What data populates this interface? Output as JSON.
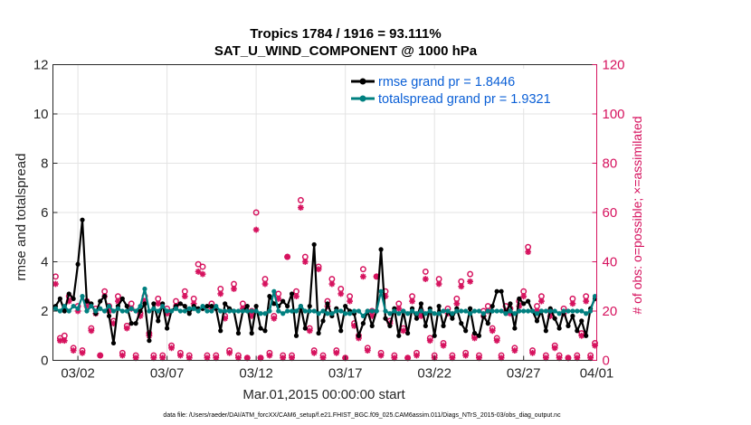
{
  "chart_data": {
    "type": "line",
    "title": [
      "Tropics 1784 / 1916 = 93.111%",
      "SAT_U_WIND_COMPONENT @ 1000 hPa"
    ],
    "xlabel": "Mar.01,2015 00:00:00 start",
    "ylabel": "rmse and totalspread",
    "ylabel_right": "# of obs: o=possible; ×=assimilated",
    "footer": "data file: /Users/raeder/DAI/ATM_forcXX/CAM6_setup/f.e21.FHIST_BGC.f09_025.CAM6assim.011/Diags_NTrS_2015-03/obs_diag_output.nc",
    "xlim": [
      0.6,
      31.1
    ],
    "ylim": [
      0,
      12
    ],
    "ylim_right": [
      0,
      120
    ],
    "xticks": [
      {
        "x": 2,
        "label": "03/02"
      },
      {
        "x": 7,
        "label": "03/07"
      },
      {
        "x": 12,
        "label": "03/12"
      },
      {
        "x": 17,
        "label": "03/17"
      },
      {
        "x": 22,
        "label": "03/22"
      },
      {
        "x": 27,
        "label": "03/27"
      },
      {
        "x": 32,
        "label": "04/01"
      }
    ],
    "yticks": [
      0,
      2,
      4,
      6,
      8,
      10,
      12
    ],
    "yticks_right": [
      0,
      20,
      40,
      60,
      80,
      100,
      120
    ],
    "grid": true,
    "legend_position": "top-right",
    "colors": {
      "rmse": "#000000",
      "spread": "#008080",
      "obs": "#d6125e",
      "legend_text": "#0a5fd6"
    },
    "series": [
      {
        "name": "rmse grand pr = 1.8446",
        "color": "#000000",
        "x": [
          0.75,
          1.0,
          1.25,
          1.5,
          1.75,
          2.0,
          2.25,
          2.5,
          2.75,
          3.0,
          3.25,
          3.5,
          3.75,
          4.0,
          4.25,
          4.5,
          4.75,
          5.0,
          5.25,
          5.5,
          5.75,
          6.0,
          6.25,
          6.5,
          6.75,
          7.0,
          7.25,
          7.5,
          7.75,
          8.0,
          8.25,
          8.5,
          8.75,
          9.0,
          9.25,
          9.5,
          9.75,
          10.0,
          10.25,
          10.5,
          10.75,
          11.0,
          11.25,
          11.5,
          11.75,
          12.0,
          12.25,
          12.5,
          12.75,
          13.0,
          13.25,
          13.5,
          13.75,
          14.0,
          14.25,
          14.5,
          14.75,
          15.0,
          15.25,
          15.5,
          15.75,
          16.0,
          16.25,
          16.5,
          16.75,
          17.0,
          17.25,
          17.5,
          17.75,
          18.0,
          18.25,
          18.5,
          18.75,
          19.0,
          19.25,
          19.5,
          19.75,
          20.0,
          20.25,
          20.5,
          20.75,
          21.0,
          21.25,
          21.5,
          21.75,
          22.0,
          22.25,
          22.5,
          22.75,
          23.0,
          23.25,
          23.5,
          23.75,
          24.0,
          24.25,
          24.5,
          24.75,
          25.0,
          25.25,
          25.5,
          25.75,
          26.0,
          26.25,
          26.5,
          26.75,
          27.0,
          27.25,
          27.5,
          27.75,
          28.0,
          28.25,
          28.5,
          28.75,
          29.0,
          29.25,
          29.5,
          29.75,
          30.0,
          30.25,
          30.5,
          30.75,
          31.0
        ],
        "values": [
          2.2,
          2.5,
          2.0,
          2.7,
          2.5,
          3.9,
          5.7,
          2.4,
          2.3,
          1.9,
          2.4,
          2.6,
          1.8,
          0.7,
          2.2,
          2.5,
          2.2,
          1.5,
          1.5,
          2.0,
          2.3,
          0.8,
          2.3,
          1.6,
          2.3,
          1.3,
          2.0,
          2.2,
          2.3,
          2.2,
          1.9,
          2.2,
          2.1,
          2.1,
          2.2,
          2.2,
          2.1,
          1.2,
          2.3,
          2.1,
          2.0,
          1.1,
          2.0,
          2.2,
          1.1,
          2.2,
          1.3,
          1.2,
          2.6,
          2.3,
          2.2,
          2.4,
          2.2,
          2.7,
          1.0,
          2.2,
          1.3,
          2.2,
          4.7,
          1.1,
          1.6,
          2.3,
          1.8,
          2.1,
          1.2,
          2.2,
          2.0,
          1.9,
          1.0,
          1.5,
          2.0,
          1.4,
          2.0,
          4.5,
          1.7,
          1.4,
          2.1,
          1.0,
          2.0,
          1.1,
          2.1,
          1.7,
          2.3,
          1.4,
          2.1,
          1.0,
          2.2,
          1.4,
          2.0,
          1.7,
          2.1,
          1.5,
          1.2,
          2.1,
          1.1,
          1.0,
          1.8,
          1.5,
          2.2,
          2.8,
          2.8,
          1.9,
          2.3,
          1.3,
          2.5,
          2.3,
          2.4,
          2.0,
          1.6,
          2.0,
          1.2,
          2.1,
          1.7,
          1.3,
          2.0,
          1.4,
          1.8,
          1.2,
          1.6,
          1.0,
          2.1,
          2.5
        ],
        "marker": "filled-circle"
      },
      {
        "name": "totalspread grand pr = 1.9321",
        "color": "#008080",
        "x": [
          0.75,
          1.0,
          1.25,
          1.5,
          1.75,
          2.0,
          2.25,
          2.5,
          2.75,
          3.0,
          3.25,
          3.5,
          3.75,
          4.0,
          4.25,
          4.5,
          4.75,
          5.0,
          5.25,
          5.5,
          5.75,
          6.0,
          6.25,
          6.5,
          6.75,
          7.0,
          7.25,
          7.5,
          7.75,
          8.0,
          8.25,
          8.5,
          8.75,
          9.0,
          9.25,
          9.5,
          9.75,
          10.0,
          10.25,
          10.5,
          10.75,
          11.0,
          11.25,
          11.5,
          11.75,
          12.0,
          12.25,
          12.5,
          12.75,
          13.0,
          13.25,
          13.5,
          13.75,
          14.0,
          14.25,
          14.5,
          14.75,
          15.0,
          15.25,
          15.5,
          15.75,
          16.0,
          16.25,
          16.5,
          16.75,
          17.0,
          17.25,
          17.5,
          17.75,
          18.0,
          18.25,
          18.5,
          18.75,
          19.0,
          19.25,
          19.5,
          19.75,
          20.0,
          20.25,
          20.5,
          20.75,
          21.0,
          21.25,
          21.5,
          21.75,
          22.0,
          22.25,
          22.5,
          22.75,
          23.0,
          23.25,
          23.5,
          23.75,
          24.0,
          24.25,
          24.5,
          24.75,
          25.0,
          25.25,
          25.5,
          25.75,
          26.0,
          26.25,
          26.5,
          26.75,
          27.0,
          27.25,
          27.5,
          27.75,
          28.0,
          28.25,
          28.5,
          28.75,
          29.0,
          29.25,
          29.5,
          29.75,
          30.0,
          30.25,
          30.5,
          30.75,
          31.0
        ],
        "values": [
          2.1,
          2.0,
          2.2,
          2.0,
          2.2,
          2.1,
          2.6,
          2.0,
          2.2,
          2.0,
          2.1,
          2.0,
          2.2,
          2.0,
          2.1,
          2.0,
          2.0,
          2.1,
          2.0,
          2.2,
          2.9,
          2.0,
          2.1,
          2.0,
          2.2,
          2.0,
          2.0,
          2.1,
          2.0,
          2.0,
          2.1,
          2.1,
          2.0,
          2.2,
          2.0,
          2.0,
          2.2,
          2.0,
          2.0,
          2.0,
          2.0,
          2.0,
          2.0,
          2.0,
          2.0,
          2.0,
          1.9,
          1.9,
          2.0,
          2.8,
          2.0,
          1.9,
          2.0,
          2.0,
          2.0,
          2.2,
          2.0,
          2.0,
          2.0,
          1.9,
          2.0,
          1.9,
          1.9,
          2.0,
          2.0,
          1.9,
          1.9,
          2.0,
          2.0,
          1.8,
          2.0,
          2.0,
          2.0,
          2.8,
          2.0,
          1.9,
          2.0,
          1.9,
          2.0,
          1.9,
          2.0,
          1.9,
          2.0,
          1.9,
          2.0,
          1.9,
          1.9,
          2.0,
          2.0,
          1.9,
          2.0,
          2.0,
          2.0,
          1.9,
          2.0,
          2.0,
          1.9,
          2.0,
          2.0,
          2.0,
          2.0,
          1.9,
          2.0,
          1.9,
          2.0,
          2.0,
          2.0,
          2.0,
          1.9,
          2.0,
          2.0,
          2.0,
          2.0,
          1.9,
          2.0,
          2.0,
          2.0,
          2.0,
          2.0,
          1.9,
          2.0,
          2.6
        ],
        "marker": "filled-circle"
      },
      {
        "name": "obs possible",
        "color": "#d6125e",
        "axis": "right",
        "marker": "open-circle",
        "x": [
          0.75,
          1.0,
          1.25,
          1.5,
          1.75,
          2.0,
          2.25,
          2.5,
          2.75,
          3.0,
          3.25,
          3.5,
          3.75,
          4.0,
          4.25,
          4.5,
          4.75,
          5.0,
          5.25,
          5.5,
          5.75,
          6.0,
          6.25,
          6.5,
          6.75,
          7.0,
          7.25,
          7.5,
          7.75,
          8.0,
          8.25,
          8.5,
          8.75,
          9.0,
          9.25,
          9.5,
          9.75,
          10.0,
          10.25,
          10.5,
          10.75,
          11.0,
          11.25,
          11.5,
          11.75,
          12.0,
          12.25,
          12.5,
          12.75,
          13.0,
          13.25,
          13.5,
          13.75,
          14.0,
          14.25,
          14.5,
          14.75,
          15.0,
          15.25,
          15.5,
          15.75,
          16.0,
          16.25,
          16.5,
          16.75,
          17.0,
          17.25,
          17.5,
          17.75,
          18.0,
          18.25,
          18.5,
          18.75,
          19.0,
          19.25,
          19.5,
          19.75,
          20.0,
          20.25,
          20.5,
          20.75,
          21.0,
          21.25,
          21.5,
          21.75,
          22.0,
          22.25,
          22.5,
          22.75,
          23.0,
          23.25,
          23.5,
          23.75,
          24.0,
          24.25,
          24.5,
          24.75,
          25.0,
          25.25,
          25.5,
          25.75,
          26.0,
          26.25,
          26.5,
          26.75,
          27.0,
          27.25,
          27.5,
          27.75,
          28.0,
          28.25,
          28.5,
          28.75,
          29.0,
          29.25,
          29.5,
          29.75,
          30.0,
          30.25,
          30.5,
          30.75,
          31.0
        ],
        "values": [
          34,
          9,
          10,
          26,
          5,
          22,
          4,
          24,
          13,
          21,
          2,
          28,
          22,
          16,
          26,
          3,
          14,
          23,
          2,
          19,
          26,
          11,
          2,
          25,
          2,
          21,
          6,
          24,
          3,
          28,
          2,
          25,
          39,
          38,
          2,
          23,
          2,
          29,
          18,
          4,
          31,
          2,
          23,
          1,
          20,
          60,
          1,
          33,
          3,
          18,
          27,
          2,
          42,
          2,
          28,
          65,
          42,
          13,
          4,
          38,
          2,
          24,
          33,
          4,
          29,
          1,
          26,
          15,
          10,
          37,
          5,
          20,
          34,
          3,
          28,
          16,
          2,
          23,
          13,
          1,
          26,
          3,
          20,
          36,
          9,
          2,
          33,
          7,
          21,
          2,
          25,
          32,
          3,
          35,
          10,
          2,
          20,
          22,
          13,
          9,
          2,
          22,
          21,
          5,
          24,
          28,
          46,
          4,
          22,
          26,
          2,
          20,
          6,
          2,
          21,
          1,
          25,
          2,
          11,
          26,
          2,
          7
        ]
      },
      {
        "name": "obs assimilated",
        "color": "#d6125e",
        "axis": "right",
        "marker": "star",
        "x": [
          0.75,
          1.0,
          1.25,
          1.5,
          1.75,
          2.0,
          2.25,
          2.5,
          2.75,
          3.0,
          3.25,
          3.5,
          3.75,
          4.0,
          4.25,
          4.5,
          4.75,
          5.0,
          5.25,
          5.5,
          5.75,
          6.0,
          6.25,
          6.5,
          6.75,
          7.0,
          7.25,
          7.5,
          7.75,
          8.0,
          8.25,
          8.5,
          8.75,
          9.0,
          9.25,
          9.5,
          9.75,
          10.0,
          10.25,
          10.5,
          10.75,
          11.0,
          11.25,
          11.5,
          11.75,
          12.0,
          12.25,
          12.5,
          12.75,
          13.0,
          13.25,
          13.5,
          13.75,
          14.0,
          14.25,
          14.5,
          14.75,
          15.0,
          15.25,
          15.5,
          15.75,
          16.0,
          16.25,
          16.5,
          16.75,
          17.0,
          17.25,
          17.5,
          17.75,
          18.0,
          18.25,
          18.5,
          18.75,
          19.0,
          19.25,
          19.5,
          19.75,
          20.0,
          20.25,
          20.5,
          20.75,
          21.0,
          21.25,
          21.5,
          21.75,
          22.0,
          22.25,
          22.5,
          22.75,
          23.0,
          23.25,
          23.5,
          23.75,
          24.0,
          24.25,
          24.5,
          24.75,
          25.0,
          25.25,
          25.5,
          25.75,
          26.0,
          26.25,
          26.5,
          26.75,
          27.0,
          27.25,
          27.5,
          27.75,
          28.0,
          28.25,
          28.5,
          28.75,
          29.0,
          29.25,
          29.5,
          29.75,
          30.0,
          30.25,
          30.5,
          30.75,
          31.0
        ],
        "values": [
          31,
          8,
          8,
          24,
          4,
          20,
          3,
          22,
          12,
          19,
          2,
          26,
          20,
          15,
          24,
          2,
          13,
          21,
          1,
          18,
          24,
          10,
          1,
          23,
          1,
          19,
          5,
          22,
          2,
          26,
          1,
          23,
          36,
          35,
          1,
          21,
          1,
          27,
          17,
          3,
          29,
          1,
          21,
          1,
          18,
          53,
          1,
          31,
          2,
          17,
          25,
          1,
          42,
          1,
          26,
          62,
          40,
          12,
          3,
          37,
          1,
          22,
          31,
          3,
          27,
          1,
          24,
          14,
          9,
          34,
          4,
          18,
          34,
          2,
          26,
          15,
          1,
          21,
          12,
          1,
          24,
          2,
          18,
          33,
          8,
          1,
          31,
          6,
          19,
          1,
          23,
          30,
          2,
          32,
          9,
          1,
          18,
          20,
          12,
          8,
          1,
          20,
          19,
          4,
          22,
          26,
          44,
          3,
          20,
          24,
          1,
          18,
          5,
          1,
          19,
          1,
          23,
          1,
          10,
          24,
          1,
          6
        ]
      }
    ]
  }
}
